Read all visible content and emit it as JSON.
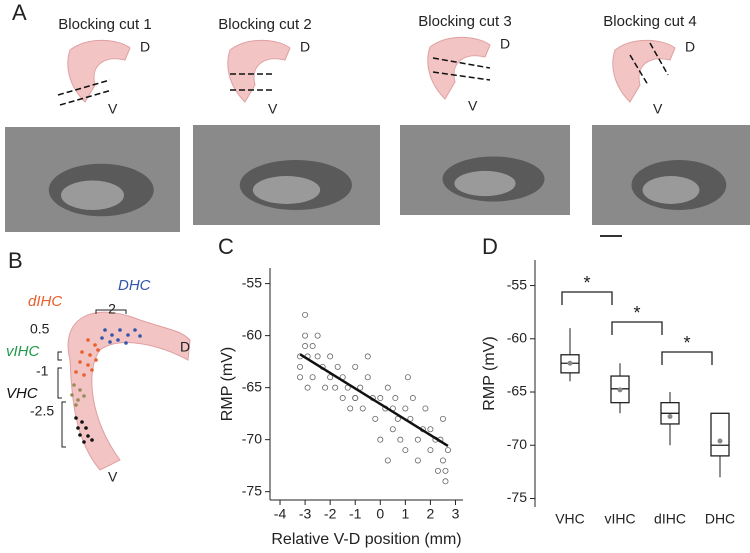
{
  "panels": [
    "A",
    "B",
    "C",
    "D"
  ],
  "blocking_cuts": [
    {
      "title": "Blocking cut 1",
      "dorsal": "D",
      "ventral": "V"
    },
    {
      "title": "Blocking cut 2",
      "dorsal": "D",
      "ventral": "V"
    },
    {
      "title": "Blocking cut 3",
      "dorsal": "D",
      "ventral": "V"
    },
    {
      "title": "Blocking cut 4",
      "dorsal": "D",
      "ventral": "V"
    }
  ],
  "diagram_b": {
    "regions": [
      "DHC",
      "dIHC",
      "vIHC",
      "VHC"
    ],
    "positions": [
      "2",
      "0.5",
      "-1",
      "-2.5"
    ],
    "dorsal": "D",
    "ventral": "V"
  },
  "chart_data": [
    {
      "type": "scatter",
      "xlabel": "Relative V-D position (mm)",
      "ylabel": "RMP (mV)",
      "xlim": [
        -4.4,
        3.3
      ],
      "xticks": [
        -4,
        -3,
        -2,
        -1,
        0,
        1,
        2,
        3
      ],
      "ylim": [
        -75.8,
        -53.5
      ],
      "yticks": [
        -55,
        -60,
        -65,
        -70,
        -75
      ],
      "color": "#666666",
      "x": [
        -3.2,
        -3.2,
        -3.2,
        -3.0,
        -3.0,
        -3.0,
        -2.9,
        -2.9,
        -2.7,
        -2.7,
        -2.5,
        -2.5,
        -2.3,
        -2.2,
        -2.0,
        -2.0,
        -1.8,
        -1.7,
        -1.5,
        -1.5,
        -1.3,
        -1.2,
        -1.0,
        -1.0,
        -0.8,
        -0.7,
        -0.5,
        -0.3,
        -0.2,
        0,
        0,
        0.2,
        0.3,
        0.5,
        0.5,
        0.6,
        0.7,
        0.8,
        1.0,
        1.0,
        1.2,
        1.3,
        1.5,
        1.5,
        1.7,
        1.8,
        2.0,
        2.0,
        2.2,
        2.3,
        2.5,
        2.5,
        2.6,
        2.7,
        0.3,
        -0.5,
        1.1,
        2.4,
        2.6,
        -1.0
      ],
      "values": [
        -62,
        -63,
        -64,
        -58,
        -60,
        -61,
        -62,
        -65,
        -61,
        -64,
        -62,
        -60,
        -63,
        -65,
        -62,
        -64,
        -65,
        -63,
        -66,
        -64,
        -65,
        -67,
        -63,
        -66,
        -65,
        -67,
        -64,
        -66,
        -68,
        -66,
        -70,
        -67,
        -65,
        -67,
        -69,
        -66,
        -68,
        -70,
        -67,
        -71,
        -68,
        -66,
        -70,
        -72,
        -69,
        -67,
        -71,
        -69,
        -70,
        -73,
        -72,
        -68,
        -74,
        -71,
        -72,
        -62,
        -64,
        -70,
        -73,
        -66
      ],
      "fit_line": {
        "x": [
          -3.2,
          2.7
        ],
        "values": [
          -61.8,
          -70.6
        ]
      }
    },
    {
      "type": "box",
      "ylabel": "RMP (mV)",
      "categories": [
        "VHC",
        "vIHC",
        "dIHC",
        "DHC"
      ],
      "ylim": [
        -75.8,
        -52.6
      ],
      "yticks": [
        -55,
        -60,
        -65,
        -70,
        -75
      ],
      "low": [
        -64,
        -67,
        -70,
        -73
      ],
      "q1": [
        -63.2,
        -66,
        -68,
        -71
      ],
      "median": [
        -62.3,
        -64.7,
        -67,
        -70
      ],
      "q3": [
        -61.5,
        -63.5,
        -66,
        -67
      ],
      "high": [
        -59,
        -62.3,
        -65,
        -67
      ],
      "mean": [
        -62.3,
        -64.8,
        -67.3,
        -69.6
      ],
      "annotations": [
        "*",
        "*",
        "*"
      ]
    }
  ]
}
